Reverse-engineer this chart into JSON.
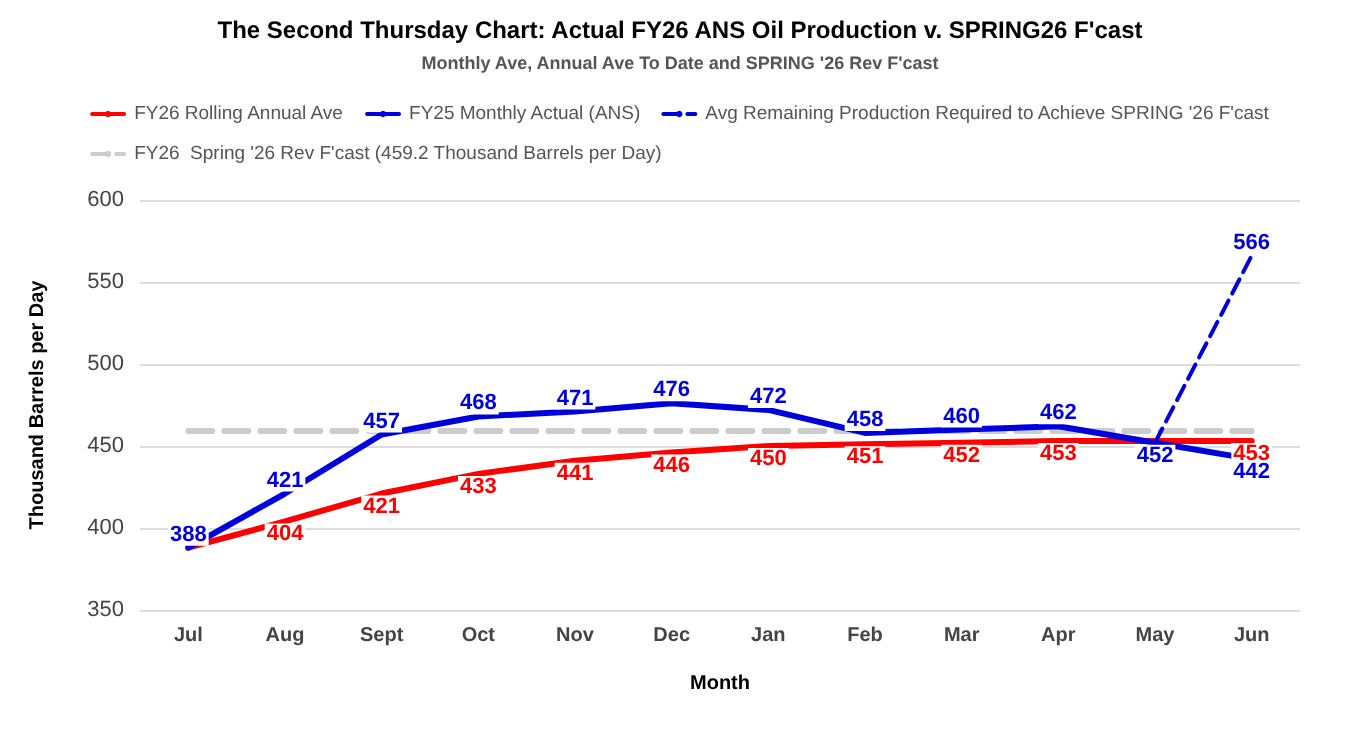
{
  "chart_data": {
    "type": "line",
    "title": "The Second Thursday Chart: Actual FY26 ANS Oil Production v. SPRING26 F'cast",
    "subtitle": "Monthly Ave, Annual Ave To Date and SPRING '26 Rev F'cast",
    "xlabel": "Month",
    "ylabel": "Thousand Barrels per Day",
    "categories": [
      "Jul",
      "Aug",
      "Sept",
      "Oct",
      "Nov",
      "Dec",
      "Jan",
      "Feb",
      "Mar",
      "Apr",
      "May",
      "Jun"
    ],
    "series": [
      {
        "name": "FY26 Rolling Annual Ave",
        "color": "#ff0000",
        "line_style": "solid",
        "values": [
          388,
          404,
          421,
          433,
          441,
          446,
          450,
          451,
          452,
          453,
          453,
          453
        ],
        "value_labels": [
          null,
          "404",
          "421",
          "433",
          "441",
          "446",
          "450",
          "451",
          "452",
          "453",
          null,
          "453"
        ]
      },
      {
        "name": "FY25 Monthly Actual (ANS)",
        "color": "#0000dd",
        "line_style": "solid",
        "values": [
          388,
          421,
          457,
          468,
          471,
          476,
          472,
          458,
          460,
          462,
          452,
          442
        ],
        "value_labels": [
          "388",
          "421",
          "457",
          "468",
          "471",
          "476",
          "472",
          "458",
          "460",
          "462",
          "452",
          "442"
        ]
      },
      {
        "name": "Avg Remaining Production Required to Achieve SPRING '26 F'cast",
        "color": "#0000dd",
        "line_style": "dashed",
        "values": [
          null,
          null,
          null,
          null,
          null,
          null,
          null,
          null,
          null,
          null,
          452,
          566
        ],
        "value_labels": [
          null,
          null,
          null,
          null,
          null,
          null,
          null,
          null,
          null,
          null,
          null,
          "566"
        ]
      },
      {
        "name": "FY26  Spring '26 Rev F'cast (459.2 Thousand Barrels per Day)",
        "color": "#cccccc",
        "line_style": "dashed",
        "values": [
          459.2,
          459.2,
          459.2,
          459.2,
          459.2,
          459.2,
          459.2,
          459.2,
          459.2,
          459.2,
          459.2,
          459.2
        ]
      }
    ],
    "ylim": [
      350,
      600
    ],
    "yticks": [
      350,
      400,
      450,
      500,
      550,
      600
    ],
    "grid": "y",
    "legend": "top",
    "marker": "none"
  }
}
